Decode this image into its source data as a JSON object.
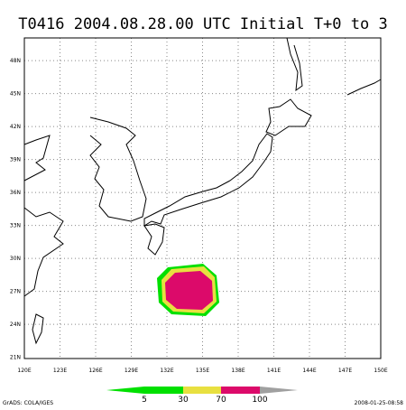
{
  "title": "T0416 2004.08.28.00 UTC Initial T+0 to 3",
  "map": {
    "lon_labels": [
      "120E",
      "123E",
      "126E",
      "129E",
      "132E",
      "135E",
      "138E",
      "141E",
      "144E",
      "147E",
      "150E"
    ],
    "lat_labels": [
      "21N",
      "24N",
      "27N",
      "30N",
      "33N",
      "36N",
      "39N",
      "42N",
      "45N",
      "48N"
    ]
  },
  "colorbar": {
    "labels": [
      "5",
      "30",
      "70",
      "100"
    ]
  },
  "footer": {
    "left": "GrADS: COLA/IGES",
    "right": "2008-01-25-08:58"
  }
}
